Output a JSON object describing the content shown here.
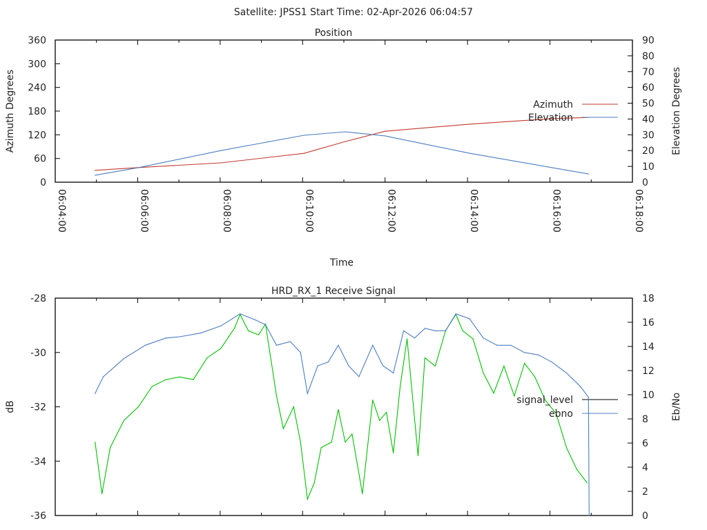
{
  "header": {
    "title": "Satellite: JPSS1    Start Time: 02-Apr-2026 06:04:57"
  },
  "colors": {
    "azimuth": "#c0392b",
    "elevation": "#4a7cbf",
    "signal_level": "#000000",
    "signal_trace": "#00c000",
    "ebno": "#4a7cbf"
  },
  "chart_data": [
    {
      "type": "line",
      "title": "Position",
      "xlabel": "Time",
      "ylabel": "Azimuth Degrees",
      "y2label": "Elevation Degrees",
      "xlim": [
        "06:04:00",
        "06:18:00"
      ],
      "xticks": [
        "06:04:00",
        "06:06:00",
        "06:08:00",
        "06:10:00",
        "06:12:00",
        "06:14:00",
        "06:16:00",
        "06:18:00"
      ],
      "ylim": [
        0,
        360
      ],
      "yticks": [
        0,
        60,
        120,
        180,
        240,
        300,
        360
      ],
      "y2lim": [
        0,
        90
      ],
      "y2ticks": [
        0,
        10,
        20,
        30,
        40,
        50,
        60,
        70,
        80,
        90
      ],
      "legend_position": "right",
      "series": [
        {
          "name": "Azimuth",
          "axis": "y",
          "color_key": "azimuth",
          "x": [
            "06:04:58",
            "06:06:01",
            "06:08:01",
            "06:10:02",
            "06:11:02",
            "06:12:00",
            "06:14:03",
            "06:16:03",
            "06:16:56"
          ],
          "values": [
            30,
            37,
            49,
            73,
            103,
            129,
            147,
            161,
            164
          ]
        },
        {
          "name": "Elevation",
          "axis": "y2",
          "color_key": "elevation",
          "x": [
            "06:04:58",
            "06:06:01",
            "06:08:01",
            "06:10:02",
            "06:11:02",
            "06:12:00",
            "06:14:03",
            "06:16:03",
            "06:16:56"
          ],
          "values": [
            4.4,
            9.2,
            20,
            29.7,
            31.9,
            29.3,
            18.3,
            9.2,
            5.2
          ]
        }
      ]
    },
    {
      "type": "line",
      "title": "HRD_RX_1 Receive Signal",
      "ylabel": "dB",
      "y2label": "Eb/No",
      "xlim": [
        "06:04:00",
        "06:18:00"
      ],
      "ylim": [
        -36,
        -28
      ],
      "yticks": [
        -36,
        -34,
        -32,
        -30,
        -28
      ],
      "y2lim": [
        0,
        18
      ],
      "y2ticks": [
        0,
        2,
        4,
        6,
        8,
        10,
        12,
        14,
        16,
        18
      ],
      "legend_position": "right",
      "series": [
        {
          "name": "signal_level",
          "axis": "y",
          "color_key": "signal_trace",
          "legend_color_key": "signal_level",
          "x": [
            "06:04:58",
            "06:05:08",
            "06:05:20",
            "06:05:40",
            "06:06:01",
            "06:06:21",
            "06:06:41",
            "06:07:01",
            "06:07:21",
            "06:07:41",
            "06:08:01",
            "06:08:21",
            "06:08:29",
            "06:08:41",
            "06:08:56",
            "06:09:06",
            "06:09:22",
            "06:09:32",
            "06:09:47",
            "06:09:57",
            "06:10:07",
            "06:10:17",
            "06:10:27",
            "06:10:42",
            "06:10:52",
            "06:11:02",
            "06:11:12",
            "06:11:27",
            "06:11:42",
            "06:11:52",
            "06:12:02",
            "06:12:12",
            "06:12:22",
            "06:12:32",
            "06:12:48",
            "06:12:58",
            "06:13:13",
            "06:13:28",
            "06:13:43",
            "06:13:53",
            "06:14:08",
            "06:14:23",
            "06:14:38",
            "06:14:53",
            "06:15:08",
            "06:15:23",
            "06:15:38",
            "06:15:53",
            "06:16:09",
            "06:16:24",
            "06:16:39",
            "06:16:54"
          ],
          "values": [
            -33.3,
            -35.2,
            -33.5,
            -32.5,
            -32.0,
            -31.25,
            -31.0,
            -30.9,
            -31.0,
            -30.2,
            -29.85,
            -29.1,
            -28.6,
            -29.2,
            -29.35,
            -28.95,
            -31.6,
            -32.8,
            -32.0,
            -33.3,
            -35.4,
            -34.8,
            -33.5,
            -33.3,
            -32.1,
            -33.3,
            -33.0,
            -35.2,
            -31.75,
            -32.5,
            -32.2,
            -33.7,
            -31.25,
            -29.5,
            -33.8,
            -30.2,
            -30.5,
            -29.2,
            -28.6,
            -29.2,
            -29.5,
            -30.75,
            -31.5,
            -30.5,
            -31.6,
            -30.4,
            -30.9,
            -31.75,
            -32.25,
            -33.5,
            -34.3,
            -34.8
          ]
        },
        {
          "name": "ebno",
          "axis": "y2",
          "color_key": "ebno",
          "x": [
            "06:04:58",
            "06:05:10",
            "06:05:40",
            "06:06:11",
            "06:06:41",
            "06:07:01",
            "06:07:31",
            "06:08:01",
            "06:08:29",
            "06:08:51",
            "06:09:06",
            "06:09:22",
            "06:09:42",
            "06:09:57",
            "06:10:07",
            "06:10:22",
            "06:10:37",
            "06:10:52",
            "06:11:07",
            "06:11:22",
            "06:11:42",
            "06:11:57",
            "06:12:12",
            "06:12:27",
            "06:12:43",
            "06:12:58",
            "06:13:13",
            "06:13:28",
            "06:13:43",
            "06:14:03",
            "06:14:23",
            "06:14:43",
            "06:15:03",
            "06:15:23",
            "06:15:43",
            "06:16:03",
            "06:16:24",
            "06:16:44",
            "06:16:56",
            "06:16:57"
          ],
          "values": [
            10.1,
            11.5,
            13.0,
            14.1,
            14.7,
            14.8,
            15.1,
            15.7,
            16.7,
            16.2,
            15.8,
            14.1,
            14.4,
            13.5,
            10.1,
            12.4,
            12.7,
            14.1,
            12.4,
            11.5,
            14.1,
            12.4,
            11.8,
            15.3,
            14.7,
            15.5,
            15.3,
            15.3,
            16.7,
            16.3,
            14.7,
            14.1,
            14.1,
            13.5,
            13.3,
            12.7,
            11.8,
            10.7,
            9.8,
            0
          ]
        }
      ]
    }
  ]
}
